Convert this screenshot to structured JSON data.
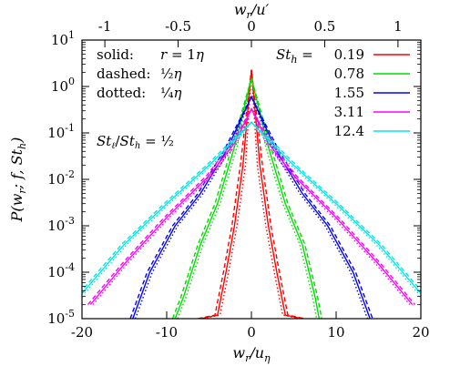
{
  "chart_data": {
    "type": "line",
    "title": "",
    "xlabel": "w_r/u_η",
    "x2label": "w_r/u′",
    "ylabel": "P(w_r; f, St_h)",
    "xlim": [
      -20,
      20
    ],
    "ylim": [
      1e-05,
      10
    ],
    "yscale": "log",
    "xticks": [
      -20,
      -10,
      0,
      10,
      20
    ],
    "xtick_labels": [
      "-20",
      "-10",
      "0",
      "10",
      "20"
    ],
    "x2ticks": [
      -1,
      -0.5,
      0,
      0.5,
      1
    ],
    "x2tick_labels": [
      "-1",
      "-0.5",
      "0",
      "0.5",
      "1"
    ],
    "x2_scale": 17.3,
    "yticks": [
      1e-05,
      0.0001,
      0.001,
      0.01,
      0.1,
      1,
      10
    ],
    "ytick_exponents": [
      "-5",
      "-4",
      "-3",
      "-2",
      "-1",
      "0",
      "1"
    ],
    "grid": false,
    "legend_header": "St_h",
    "style_note": {
      "solid": "r = 1η",
      "dashed": "½η",
      "dotted": "¼η"
    },
    "ratio_note": "St_ℓ/St_h = ½",
    "series": [
      {
        "name": "0.19",
        "color": "#ff0000",
        "peak": 2.3,
        "x": [
          -6,
          -4,
          -3,
          -2,
          -1,
          0,
          1,
          2,
          3,
          4,
          6
        ],
        "values": [
          1e-05,
          1.2e-05,
          0.0001,
          0.001,
          0.02,
          2.3,
          0.02,
          0.001,
          0.0001,
          1.2e-05,
          1e-05
        ]
      },
      {
        "name": "0.78",
        "color": "#00dd00",
        "peak": 1.5,
        "x": [
          -9,
          -8,
          -6,
          -4,
          -2,
          0,
          2,
          4,
          6,
          7.5,
          8
        ],
        "values": [
          1e-05,
          3e-05,
          0.0004,
          0.003,
          0.05,
          1.5,
          0.05,
          0.003,
          0.0004,
          3e-05,
          1e-05
        ]
      },
      {
        "name": "1.55",
        "color": "#0000ff",
        "peak": 0.6,
        "x": [
          -14,
          -12,
          -9,
          -6,
          -3,
          0,
          3,
          6,
          9,
          12,
          14
        ],
        "values": [
          1e-05,
          0.0001,
          0.001,
          0.005,
          0.04,
          0.6,
          0.04,
          0.005,
          0.001,
          0.0001,
          1e-05
        ]
      },
      {
        "name": "3.11",
        "color": "#ff00ff",
        "peak": 0.33,
        "x": [
          -19,
          -15,
          -10,
          -5,
          -2,
          0,
          2,
          5,
          10,
          15,
          19
        ],
        "values": [
          2e-05,
          0.00015,
          0.0015,
          0.012,
          0.06,
          0.33,
          0.06,
          0.012,
          0.0015,
          0.00015,
          2e-05
        ]
      },
      {
        "name": "12.4",
        "color": "#00e5e5",
        "peak": 0.17,
        "x": [
          -20,
          -15,
          -10,
          -5,
          -2,
          0,
          2,
          5,
          10,
          15,
          20
        ],
        "values": [
          3.5e-05,
          0.0004,
          0.003,
          0.02,
          0.07,
          0.17,
          0.07,
          0.02,
          0.003,
          0.0004,
          3.5e-05
        ]
      }
    ]
  }
}
